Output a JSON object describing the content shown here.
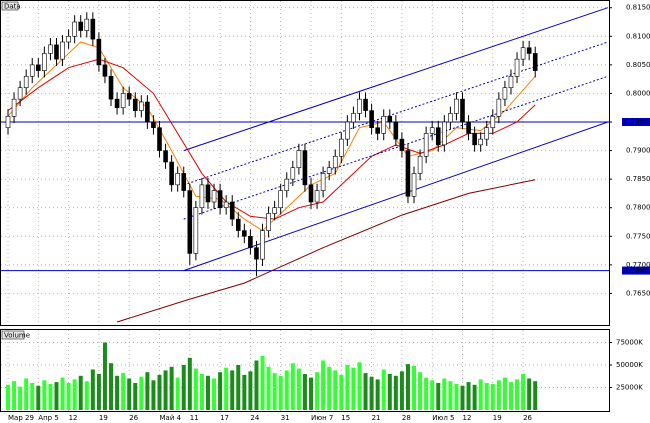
{
  "chart_data": {
    "type": "candlestick",
    "title": "Data",
    "categories": [
      "Мар 29",
      null,
      null,
      null,
      null,
      "Апр 5",
      null,
      null,
      null,
      null,
      "12",
      null,
      null,
      null,
      null,
      "19",
      null,
      null,
      null,
      null,
      "26",
      null,
      null,
      null,
      null,
      "Май 4",
      null,
      null,
      null,
      null,
      "11",
      null,
      null,
      null,
      null,
      "17",
      null,
      null,
      null,
      null,
      "24",
      null,
      null,
      null,
      null,
      "31",
      null,
      null,
      null,
      null,
      "Июн 7",
      null,
      null,
      null,
      null,
      "15",
      null,
      null,
      null,
      null,
      "21",
      null,
      null,
      null,
      null,
      "28",
      null,
      null,
      null,
      null,
      "Июл 5",
      null,
      null,
      null,
      null,
      "12",
      null,
      null,
      null,
      null,
      "19",
      null,
      null,
      null,
      null,
      "26",
      null,
      null
    ],
    "open": [
      0.794,
      0.796,
      0.799,
      0.801,
      0.803,
      0.805,
      0.804,
      0.807,
      0.8085,
      0.806,
      0.809,
      0.81,
      0.8125,
      0.811,
      0.813,
      0.8095,
      0.805,
      0.803,
      0.799,
      0.7975,
      0.8,
      0.799,
      0.797,
      0.7985,
      0.795,
      0.794,
      0.79,
      0.788,
      0.784,
      0.786,
      0.783,
      0.772,
      0.78,
      0.784,
      0.781,
      0.783,
      0.78,
      0.781,
      0.778,
      0.776,
      0.775,
      0.773,
      0.771,
      0.776,
      0.779,
      0.78,
      0.783,
      0.785,
      0.787,
      0.79,
      0.784,
      0.781,
      0.783,
      0.786,
      0.787,
      0.789,
      0.792,
      0.795,
      0.7965,
      0.799,
      0.797,
      0.794,
      0.793,
      0.796,
      0.795,
      0.792,
      0.79,
      0.782,
      0.786,
      0.789,
      0.793,
      0.794,
      0.791,
      0.795,
      0.7965,
      0.799,
      0.795,
      0.793,
      0.791,
      0.792,
      0.794,
      0.796,
      0.799,
      0.801,
      0.803,
      0.806,
      0.808,
      0.807
    ],
    "high": [
      0.7972,
      0.8002,
      0.8022,
      0.8042,
      0.8062,
      0.8062,
      0.8082,
      0.8097,
      0.8097,
      0.8102,
      0.8112,
      0.8137,
      0.8137,
      0.8142,
      0.8142,
      0.8107,
      0.8062,
      0.8042,
      0.8002,
      0.8012,
      0.8012,
      0.8002,
      0.7997,
      0.7997,
      0.7962,
      0.7952,
      0.7912,
      0.7892,
      0.7872,
      0.7872,
      0.7842,
      0.7812,
      0.7852,
      0.7852,
      0.7842,
      0.7842,
      0.7822,
      0.7822,
      0.7792,
      0.7772,
      0.7762,
      0.7742,
      0.7772,
      0.7802,
      0.7812,
      0.7842,
      0.7862,
      0.7882,
      0.7912,
      0.7912,
      0.7852,
      0.7842,
      0.7872,
      0.7882,
      0.7902,
      0.7932,
      0.7962,
      0.7977,
      0.8002,
      0.8002,
      0.7982,
      0.7952,
      0.7972,
      0.7972,
      0.7962,
      0.7932,
      0.7912,
      0.7872,
      0.7902,
      0.7942,
      0.7952,
      0.7952,
      0.7962,
      0.7977,
      0.8002,
      0.8002,
      0.7962,
      0.7942,
      0.7932,
      0.7952,
      0.7972,
      0.8002,
      0.8022,
      0.8042,
      0.8072,
      0.8092,
      0.8092,
      0.8082
    ],
    "low": [
      0.7928,
      0.7948,
      0.7978,
      0.7998,
      0.8018,
      0.8028,
      0.8028,
      0.8058,
      0.8048,
      0.8048,
      0.8078,
      0.8088,
      0.8098,
      0.8098,
      0.8083,
      0.8038,
      0.8018,
      0.7978,
      0.7963,
      0.7963,
      0.7978,
      0.7958,
      0.7958,
      0.7938,
      0.7928,
      0.7888,
      0.7868,
      0.7828,
      0.7828,
      0.7818,
      0.77,
      0.7708,
      0.7788,
      0.7798,
      0.7798,
      0.7788,
      0.7788,
      0.7768,
      0.7748,
      0.7738,
      0.7718,
      0.768,
      0.7698,
      0.7748,
      0.7778,
      0.7788,
      0.7818,
      0.7838,
      0.7858,
      0.7828,
      0.7798,
      0.7798,
      0.7818,
      0.7848,
      0.7858,
      0.7878,
      0.7908,
      0.7938,
      0.7953,
      0.7958,
      0.7928,
      0.7918,
      0.7918,
      0.7938,
      0.7908,
      0.7888,
      0.7808,
      0.7808,
      0.7848,
      0.7878,
      0.7918,
      0.7898,
      0.7898,
      0.7938,
      0.7953,
      0.7938,
      0.7918,
      0.7898,
      0.7898,
      0.7908,
      0.7928,
      0.7948,
      0.7978,
      0.7998,
      0.8018,
      0.8048,
      0.8058,
      0.8028
    ],
    "close": [
      0.796,
      0.799,
      0.801,
      0.803,
      0.805,
      0.804,
      0.807,
      0.8085,
      0.806,
      0.809,
      0.81,
      0.8125,
      0.811,
      0.813,
      0.8095,
      0.805,
      0.803,
      0.799,
      0.7975,
      0.8,
      0.799,
      0.797,
      0.7985,
      0.795,
      0.794,
      0.79,
      0.788,
      0.784,
      0.786,
      0.783,
      0.772,
      0.78,
      0.784,
      0.781,
      0.783,
      0.78,
      0.781,
      0.778,
      0.776,
      0.775,
      0.773,
      0.771,
      0.776,
      0.779,
      0.78,
      0.783,
      0.785,
      0.787,
      0.79,
      0.784,
      0.781,
      0.783,
      0.786,
      0.787,
      0.789,
      0.792,
      0.795,
      0.7965,
      0.799,
      0.797,
      0.794,
      0.793,
      0.796,
      0.795,
      0.792,
      0.79,
      0.782,
      0.786,
      0.789,
      0.793,
      0.794,
      0.791,
      0.795,
      0.7965,
      0.799,
      0.795,
      0.793,
      0.791,
      0.792,
      0.794,
      0.796,
      0.799,
      0.801,
      0.803,
      0.806,
      0.808,
      0.807,
      0.804
    ],
    "up_color": "#ffffff",
    "down_color": "#000000",
    "ylim": [
      0.76,
      0.816
    ],
    "yticks": [
      {
        "value": 0.765,
        "label": "0.7650"
      },
      {
        "value": 0.77,
        "label": "0.7700"
      },
      {
        "value": 0.775,
        "label": "0.7750"
      },
      {
        "value": 0.78,
        "label": "0.7800"
      },
      {
        "value": 0.785,
        "label": "0.7850"
      },
      {
        "value": 0.79,
        "label": "0.7900"
      },
      {
        "value": 0.795,
        "label": "0.7950"
      },
      {
        "value": 0.8,
        "label": "0.8000"
      },
      {
        "value": 0.805,
        "label": "0.8050"
      },
      {
        "value": 0.81,
        "label": "0.8100"
      },
      {
        "value": 0.815,
        "label": "0.8150"
      }
    ],
    "grid": true,
    "lines": [
      {
        "color": "#ff8000",
        "dash": false,
        "x": [
          0,
          4,
          8,
          12,
          15,
          19,
          23,
          27,
          31,
          35,
          39,
          42,
          46,
          50,
          54,
          58,
          62,
          66,
          70,
          74,
          78,
          82,
          87
        ],
        "values": [
          0.796,
          0.801,
          0.805,
          0.809,
          0.808,
          0.801,
          0.7975,
          0.79,
          0.782,
          0.7815,
          0.778,
          0.776,
          0.78,
          0.784,
          0.786,
          0.794,
          0.795,
          0.789,
          0.79,
          0.794,
          0.7935,
          0.797,
          0.803
        ]
      },
      {
        "color": "#e00000",
        "dash": false,
        "x": [
          0,
          5,
          10,
          15,
          19,
          24,
          28,
          32,
          36,
          40,
          44,
          48,
          52,
          56,
          60,
          64,
          68,
          72,
          76,
          80,
          84,
          87
        ],
        "values": [
          0.797,
          0.801,
          0.8045,
          0.806,
          0.8045,
          0.8,
          0.793,
          0.786,
          0.781,
          0.7785,
          0.778,
          0.78,
          0.781,
          0.785,
          0.789,
          0.791,
          0.7895,
          0.791,
          0.793,
          0.793,
          0.795,
          0.798
        ]
      },
      {
        "color": "#800000",
        "dash": false,
        "x": [
          18,
          30,
          39,
          52,
          65,
          76,
          87
        ],
        "values": [
          0.76,
          0.764,
          0.7668,
          0.773,
          0.7787,
          0.7825,
          0.7849
        ]
      },
      {
        "color": "#0000c0",
        "dash": false,
        "x": [
          29,
          99
        ],
        "values": [
          0.79,
          0.815
        ]
      },
      {
        "color": "#0000c0",
        "dash": true,
        "x": [
          29,
          99
        ],
        "values": [
          0.784,
          0.809
        ]
      },
      {
        "color": "#0000c0",
        "dash": true,
        "x": [
          29,
          99
        ],
        "values": [
          0.778,
          0.803
        ]
      },
      {
        "color": "#0000c0",
        "dash": false,
        "x": [
          29,
          99
        ],
        "values": [
          0.769,
          0.795
        ]
      }
    ],
    "levels": [
      {
        "value": 0.795,
        "label": "0.7950"
      },
      {
        "value": 0.769,
        "label": "0.7690"
      }
    ],
    "level_color": "#0000c0",
    "volume": {
      "title": "Volume",
      "up_color": "#33ff33",
      "down_color": "#1a8c1a",
      "values": [
        28000,
        32000,
        26000,
        35000,
        30000,
        27000,
        33000,
        29000,
        31000,
        36000,
        30000,
        34000,
        38000,
        32000,
        45000,
        40000,
        75000,
        52000,
        38000,
        41000,
        35000,
        30000,
        37000,
        42000,
        33000,
        39000,
        44000,
        48000,
        36000,
        50000,
        58000,
        46000,
        40000,
        38000,
        35000,
        42000,
        47000,
        44000,
        50000,
        39000,
        43000,
        55000,
        60000,
        48000,
        41000,
        38000,
        44000,
        52000,
        46000,
        40000,
        36000,
        42000,
        55000,
        48000,
        44000,
        39000,
        50000,
        47000,
        53000,
        41000,
        37000,
        34000,
        45000,
        40000,
        38000,
        43000,
        51000,
        49000,
        42000,
        36000,
        33000,
        30000,
        35000,
        32000,
        29000,
        27000,
        31000,
        28000,
        34000,
        30000,
        29000,
        33000,
        36000,
        31000,
        34000,
        40000,
        35000,
        32000
      ],
      "ylim": [
        0,
        80000
      ],
      "yticks": [
        {
          "value": 25000,
          "label": "25000K"
        },
        {
          "value": 50000,
          "label": "50000K"
        },
        {
          "value": 75000,
          "label": "75000K"
        }
      ]
    }
  }
}
